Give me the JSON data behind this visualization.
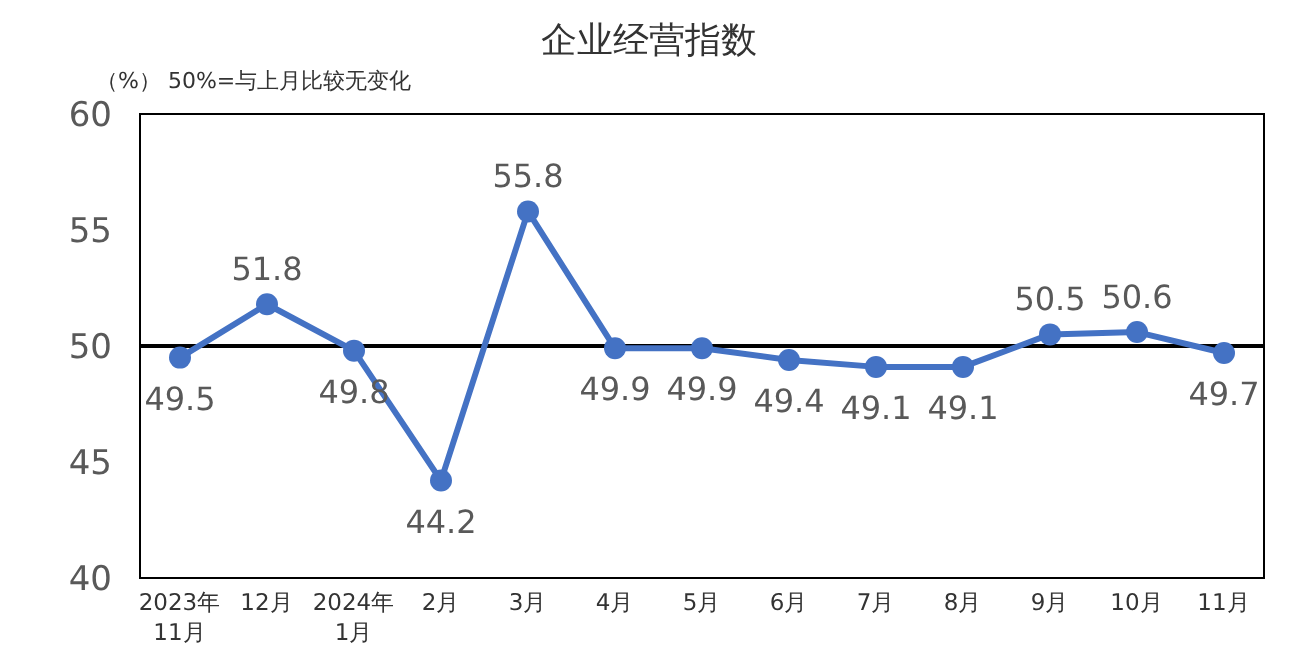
{
  "chart_data": {
    "type": "line",
    "title": "企业经营指数",
    "annotations": [
      "（%）  50%=与上月比较无变化"
    ],
    "categories": [
      "2023年\n11月",
      "12月",
      "2024年\n1月",
      "2月",
      "3月",
      "4月",
      "5月",
      "6月",
      "7月",
      "8月",
      "9月",
      "10月",
      "11月"
    ],
    "series": [
      {
        "color": "#4472c4",
        "values": [
          49.5,
          51.8,
          49.8,
          44.2,
          55.8,
          49.9,
          49.9,
          49.4,
          49.1,
          49.1,
          50.5,
          50.6,
          49.7
        ]
      }
    ],
    "ylim": [
      40,
      60
    ],
    "yticks": [
      40,
      45,
      50,
      55,
      60
    ],
    "ref_lines": [
      {
        "axis": "y",
        "value": 50,
        "color": "#000000"
      }
    ],
    "data_labels": true,
    "marker": "circle",
    "grid": false
  }
}
